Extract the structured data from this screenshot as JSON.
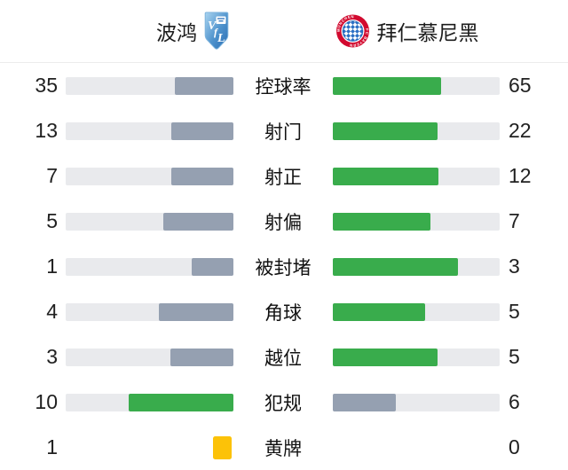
{
  "header": {
    "home_team": {
      "name": "波鸿",
      "logo": "vfl-bochum-crest"
    },
    "away_team": {
      "name": "拜仁慕尼黑",
      "logo": "fc-bayern-crest"
    }
  },
  "colors": {
    "green": "#39ac4c",
    "slate": "#95a0b1",
    "track": "#e9eaed",
    "yellow_card": "#fcc208",
    "text": "#212121",
    "divider": "#ececec"
  },
  "chart_data": {
    "type": "bar",
    "subtype": "head-to-head horizontal comparison, bars grow outward from center labels",
    "title": "",
    "categories": [
      "控球率",
      "射门",
      "射正",
      "射偏",
      "被封堵",
      "角球",
      "越位",
      "犯规",
      "黄牌"
    ],
    "row_kinds": [
      "bar",
      "bar",
      "bar",
      "bar",
      "bar",
      "bar",
      "bar",
      "bar",
      "card"
    ],
    "series": [
      {
        "name": "波鸿",
        "values": [
          35,
          13,
          7,
          5,
          1,
          4,
          3,
          10,
          1
        ]
      },
      {
        "name": "拜仁慕尼黑",
        "values": [
          65,
          22,
          12,
          7,
          3,
          5,
          5,
          6,
          0
        ]
      }
    ],
    "value_scale": "fill width = value / (home + away) of row",
    "highlight_rule": "team with higher value gets green fill, lower gets slate gray; yellow cards drawn as small yellow card glyph",
    "grid": false,
    "legend_position": "none"
  }
}
